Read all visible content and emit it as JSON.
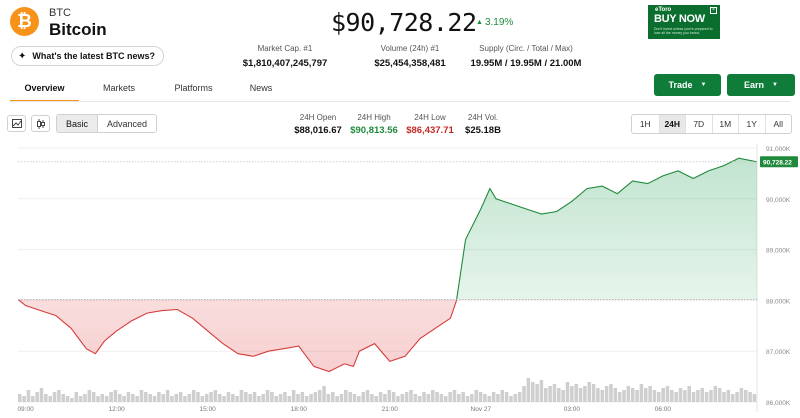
{
  "coin": {
    "symbol": "BTC",
    "name": "Bitcoin",
    "logo_glyph": "₿",
    "news_prompt": "What's the latest BTC news?"
  },
  "price": {
    "value": "$90,728.22",
    "change": "3.19%",
    "direction": "up"
  },
  "stats": {
    "market_cap": {
      "label": "Market Cap. #1",
      "value": "$1,810,407,245,797"
    },
    "volume": {
      "label": "Volume (24h) #1",
      "value": "$25,454,358,481"
    },
    "supply": {
      "label": "Supply (Circ. / Total / Max)",
      "value": "19.95M / 19.95M / 21.00M"
    }
  },
  "ad": {
    "brand": "eToro",
    "headline": "BUY NOW",
    "disclaimer": "Don't invest unless you're prepared to lose all the money you invest."
  },
  "tabs": [
    "Overview",
    "Markets",
    "Platforms",
    "News"
  ],
  "active_tab": "Overview",
  "actions": {
    "trade": "Trade",
    "earn": "Earn"
  },
  "view_modes": {
    "basic": "Basic",
    "advanced": "Advanced",
    "active": "Basic"
  },
  "ohlc": {
    "open": {
      "label": "24H Open",
      "value": "$88,016.67"
    },
    "high": {
      "label": "24H High",
      "value": "$90,813.56"
    },
    "low": {
      "label": "24H Low",
      "value": "$86,437.71"
    },
    "vol": {
      "label": "24H Vol.",
      "value": "$25.18B"
    }
  },
  "ranges": [
    "1H",
    "24H",
    "7D",
    "1M",
    "1Y",
    "All"
  ],
  "active_range": "24H",
  "colors": {
    "brand_orange": "#f7931a",
    "up_green": "#1f8a3b",
    "down_red": "#c62828",
    "button_green": "#0f7c3a"
  },
  "chart_data": {
    "type": "area",
    "y_ticks": [
      "91,000K",
      "90,000K",
      "89,000K",
      "88,000K",
      "87,000K",
      "86,000K"
    ],
    "ylim": [
      86000,
      91000
    ],
    "x_ticks": [
      "09:00",
      "12:00",
      "15:00",
      "18:00",
      "21:00",
      "Nov 27",
      "03:00",
      "06:00"
    ],
    "x_tick_hours": [
      0,
      3,
      6,
      9,
      12,
      15,
      18,
      21
    ],
    "x_hours_range": [
      -0.25,
      24.1
    ],
    "baseline": 88016.67,
    "current_label": "90,728.22",
    "current_value": 90728.22,
    "series": [
      {
        "x": [
          -0.25,
          0,
          0.5,
          1,
          1.5,
          2,
          2.3,
          2.6,
          3,
          3.5,
          4,
          4.5,
          5,
          5.5,
          6,
          6.5,
          7,
          7.5,
          8,
          8.5,
          9,
          9.5,
          10,
          10.5,
          10.8,
          11,
          11.5,
          12,
          12.5,
          13,
          13.5,
          14,
          14.2,
          14.5,
          15,
          15.3,
          15.5,
          16,
          16.5,
          17,
          17.5,
          18,
          18.5,
          19,
          19.5,
          20,
          20.5,
          21,
          21.5,
          22,
          22.5,
          23,
          23.5,
          24.1
        ],
        "y": [
          88020,
          87900,
          87800,
          87700,
          87450,
          87050,
          86950,
          87200,
          87400,
          87600,
          87750,
          87800,
          87820,
          87650,
          87400,
          87150,
          86950,
          86900,
          87000,
          87050,
          87100,
          86700,
          86600,
          86750,
          86700,
          87000,
          87150,
          86800,
          86900,
          87250,
          87450,
          87650,
          88000,
          89200,
          89800,
          90200,
          90000,
          89900,
          89800,
          89700,
          89750,
          89950,
          90200,
          90250,
          90100,
          90350,
          90300,
          90450,
          90550,
          90400,
          90550,
          90650,
          90800,
          90728
        ]
      }
    ],
    "volume": [
      4,
      3,
      6,
      3,
      5,
      7,
      4,
      3,
      5,
      6,
      4,
      3,
      2,
      5,
      3,
      4,
      6,
      5,
      3,
      4,
      3,
      5,
      6,
      4,
      3,
      5,
      4,
      3,
      6,
      5,
      4,
      3,
      5,
      4,
      6,
      3,
      4,
      5,
      3,
      4,
      6,
      5,
      3,
      4,
      5,
      6,
      4,
      3,
      5,
      4,
      3,
      6,
      5,
      4,
      5,
      3,
      4,
      6,
      5,
      3,
      4,
      5,
      3,
      6,
      4,
      5,
      3,
      4,
      5,
      6,
      8,
      4,
      5,
      3,
      4,
      6,
      5,
      4,
      3,
      5,
      6,
      4,
      3,
      5,
      4,
      6,
      5,
      3,
      4,
      5,
      6,
      4,
      3,
      5,
      4,
      6,
      5,
      4,
      3,
      5,
      6,
      4,
      5,
      3,
      4,
      6,
      5,
      4,
      3,
      5,
      4,
      6,
      5,
      3,
      4,
      5,
      8,
      12,
      10,
      9,
      11,
      7,
      8,
      9,
      7,
      6,
      10,
      8,
      9,
      7,
      8,
      10,
      9,
      7,
      6,
      8,
      9,
      7,
      5,
      6,
      8,
      7,
      6,
      9,
      7,
      8,
      6,
      5,
      7,
      8,
      6,
      5,
      7,
      6,
      8,
      5,
      6,
      7,
      5,
      6,
      8,
      7,
      5,
      6,
      4,
      5,
      7,
      6,
      5,
      4
    ]
  }
}
